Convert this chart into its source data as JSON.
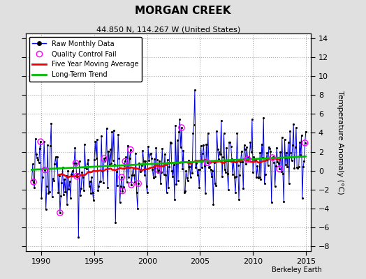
{
  "title": "MORGAN CREEK",
  "subtitle": "44.850 N, 114.267 W (United States)",
  "ylabel": "Temperature Anomaly (°C)",
  "credit": "Berkeley Earth",
  "xlim": [
    1988.5,
    2015.5
  ],
  "ylim": [
    -8.5,
    14.5
  ],
  "yticks": [
    -8,
    -6,
    -4,
    -2,
    0,
    2,
    4,
    6,
    8,
    10,
    12,
    14
  ],
  "xticks": [
    1990,
    1995,
    2000,
    2005,
    2010,
    2015
  ],
  "raw_color": "#0000dd",
  "trend_color": "#00bb00",
  "moving_avg_color": "#ee0000",
  "qc_fail_color": "#ff00ff",
  "bg_color": "#e0e0e0",
  "plot_bg_color": "#ffffff",
  "grid_color": "#aaaaaa",
  "seed": 12345
}
